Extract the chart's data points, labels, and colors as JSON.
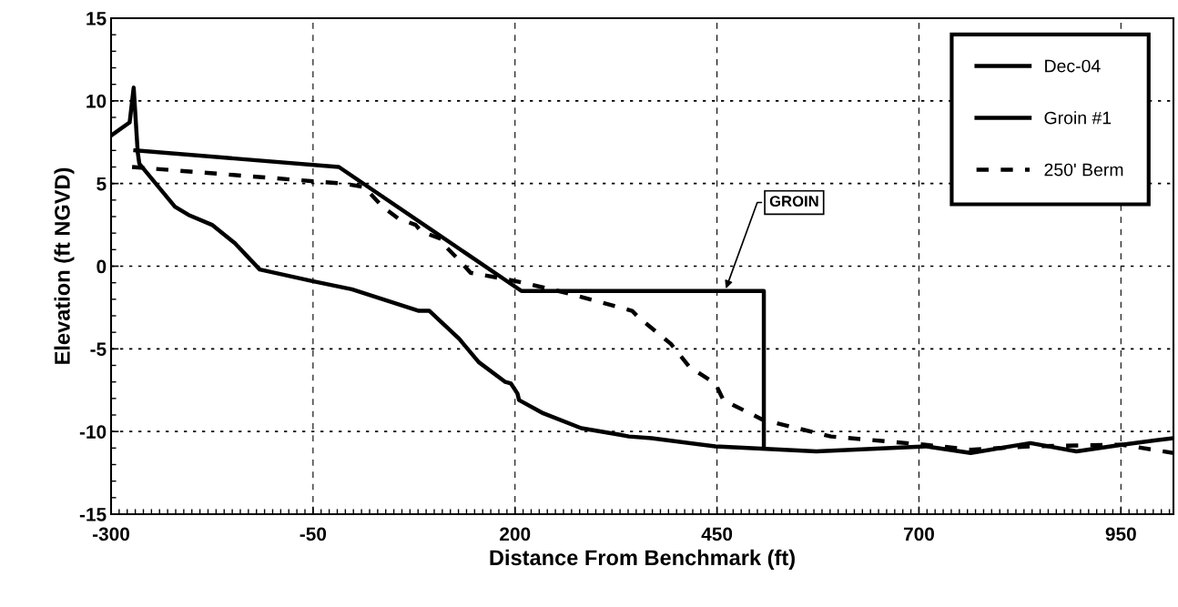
{
  "chart_data": {
    "type": "line",
    "xlabel": "Distance From Benchmark (ft)",
    "ylabel": "Elevation (ft NGVD)",
    "xlim": [
      -300,
      1015
    ],
    "xticks": [
      -300,
      -50,
      200,
      450,
      700,
      950
    ],
    "ylim": [
      -15,
      15
    ],
    "yticks": [
      -15,
      -10,
      -5,
      0,
      5,
      10,
      15
    ],
    "grid": true,
    "legend": "top right",
    "series": [
      {
        "name": "Dec-04",
        "color": "#000000",
        "line_style": "solid",
        "x": [
          -300,
          -277,
          -272,
          -267,
          -265,
          -221,
          -204,
          -175,
          -147,
          -116,
          -51,
          -2,
          81,
          94,
          131,
          155,
          188,
          195,
          203,
          205,
          235,
          282,
          330,
          341,
          369,
          448,
          573,
          709,
          764,
          838,
          895,
          951,
          1015
        ],
        "values": [
          7.9,
          8.7,
          10.8,
          6.9,
          6.2,
          3.6,
          3.1,
          2.5,
          1.4,
          -0.2,
          -0.9,
          -1.4,
          -2.7,
          -2.7,
          -4.4,
          -5.8,
          -7.0,
          -7.1,
          -7.7,
          -8.1,
          -8.9,
          -9.8,
          -10.2,
          -10.3,
          -10.4,
          -10.9,
          -11.2,
          -10.9,
          -11.3,
          -10.7,
          -11.2,
          -10.8,
          -10.4
        ]
      },
      {
        "name": "Groin #1",
        "color": "#000000",
        "line_style": "solid",
        "x": [
          -270,
          -18,
          208,
          508,
          508
        ],
        "values": [
          7.0,
          6.0,
          -1.5,
          -1.5,
          -11.0
        ]
      },
      {
        "name": "250' Berm",
        "color": "#000000",
        "line_style": "dashed",
        "x": [
          -274,
          -66,
          -13,
          13,
          36,
          55,
          77,
          84,
          111,
          114,
          134,
          145,
          190,
          210,
          262,
          345,
          353,
          393,
          416,
          448,
          458,
          507,
          591,
          708,
          764,
          838,
          951,
          1015
        ],
        "values": [
          6.0,
          5.2,
          5.0,
          4.8,
          3.6,
          2.9,
          2.5,
          2.1,
          1.6,
          1.2,
          0.2,
          -0.4,
          -0.8,
          -1.0,
          -1.6,
          -2.7,
          -3.1,
          -4.7,
          -6.1,
          -7.1,
          -8.1,
          -9.3,
          -10.3,
          -10.8,
          -11.1,
          -10.9,
          -10.8,
          -11.3
        ]
      }
    ],
    "annotations": [
      {
        "text": "GROIN",
        "x": 460,
        "y": -1.5
      }
    ]
  }
}
